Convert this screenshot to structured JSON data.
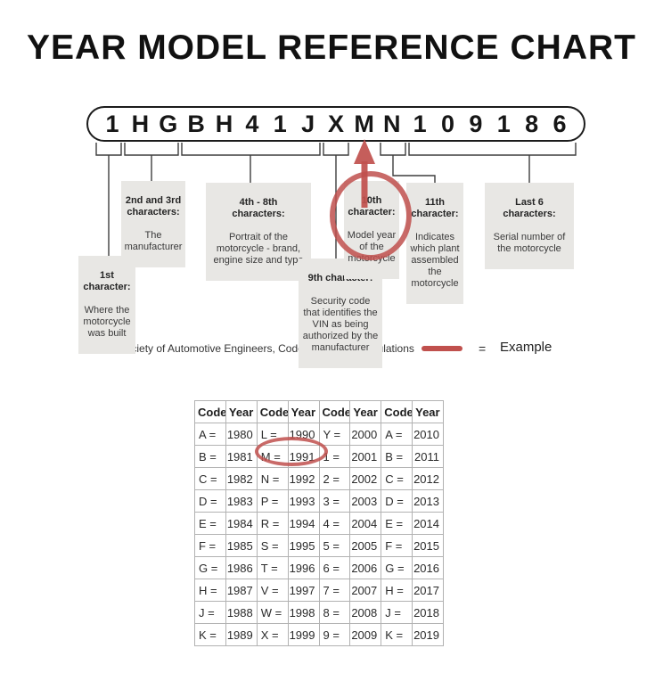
{
  "title": "YEAR MODEL REFERENCE CHART",
  "vin": {
    "chars": [
      "1",
      "H",
      "G",
      "B",
      "H",
      "4",
      "1",
      "J",
      "X",
      "M",
      "N",
      "1",
      "0",
      "9",
      "1",
      "8",
      "6"
    ]
  },
  "callouts": [
    {
      "heading": "1st\ncharacter:",
      "body": "Where the\nmotorcycle\nwas built"
    },
    {
      "heading": "2nd and 3rd\ncharacters:",
      "body": "The\nmanufacturer"
    },
    {
      "heading": "4th - 8th\ncharacters:",
      "body": "Portrait of the\nmotorcycle - brand,\nengine size and type"
    },
    {
      "heading": "9th character:",
      "body": "Security code\nthat identifies the\nVIN as being\nauthorized by the\nmanufacturer"
    },
    {
      "heading": "10th\ncharacter:",
      "body": "Model year\nof the\nmotorcycle"
    },
    {
      "heading": "11th\ncharacter:",
      "body": "Indicates\nwhich plant\nassembled\nthe\nmotorcycle"
    },
    {
      "heading": "Last 6\ncharacters:",
      "body": "Serial number of\nthe motorcycle"
    }
  ],
  "source_label": "Source:  Society of Automotive Engineers, Code of Federal Regulations",
  "legend": {
    "equals": "=",
    "label": "Example"
  },
  "colors": {
    "example_red": "#c0504d",
    "callout_gray": "#e8e7e4"
  },
  "table": {
    "headers": [
      "Code",
      "Year",
      "Code",
      "Year",
      "Code",
      "Year",
      "Code",
      "Year"
    ],
    "rows": [
      [
        "A =",
        "1980",
        "L =",
        "1990",
        "Y =",
        "2000",
        "A =",
        "2010"
      ],
      [
        "B =",
        "1981",
        "M =",
        "1991",
        "1 =",
        "2001",
        "B =",
        "2011"
      ],
      [
        "C =",
        "1982",
        "N =",
        "1992",
        "2 =",
        "2002",
        "C =",
        "2012"
      ],
      [
        "D =",
        "1983",
        "P =",
        "1993",
        "3 =",
        "2003",
        "D =",
        "2013"
      ],
      [
        "E =",
        "1984",
        "R =",
        "1994",
        "4 =",
        "2004",
        "E =",
        "2014"
      ],
      [
        "F =",
        "1985",
        "S =",
        "1995",
        "5 =",
        "2005",
        "F =",
        "2015"
      ],
      [
        "G =",
        "1986",
        "T =",
        "1996",
        "6 =",
        "2006",
        "G =",
        "2016"
      ],
      [
        "H =",
        "1987",
        "V =",
        "1997",
        "7 =",
        "2007",
        "H =",
        "2017"
      ],
      [
        "J =",
        "1988",
        "W =",
        "1998",
        "8 =",
        "2008",
        "J =",
        "2018"
      ],
      [
        "K =",
        "1989",
        "X =",
        "1999",
        "9 =",
        "2009",
        "K =",
        "2019"
      ]
    ]
  }
}
